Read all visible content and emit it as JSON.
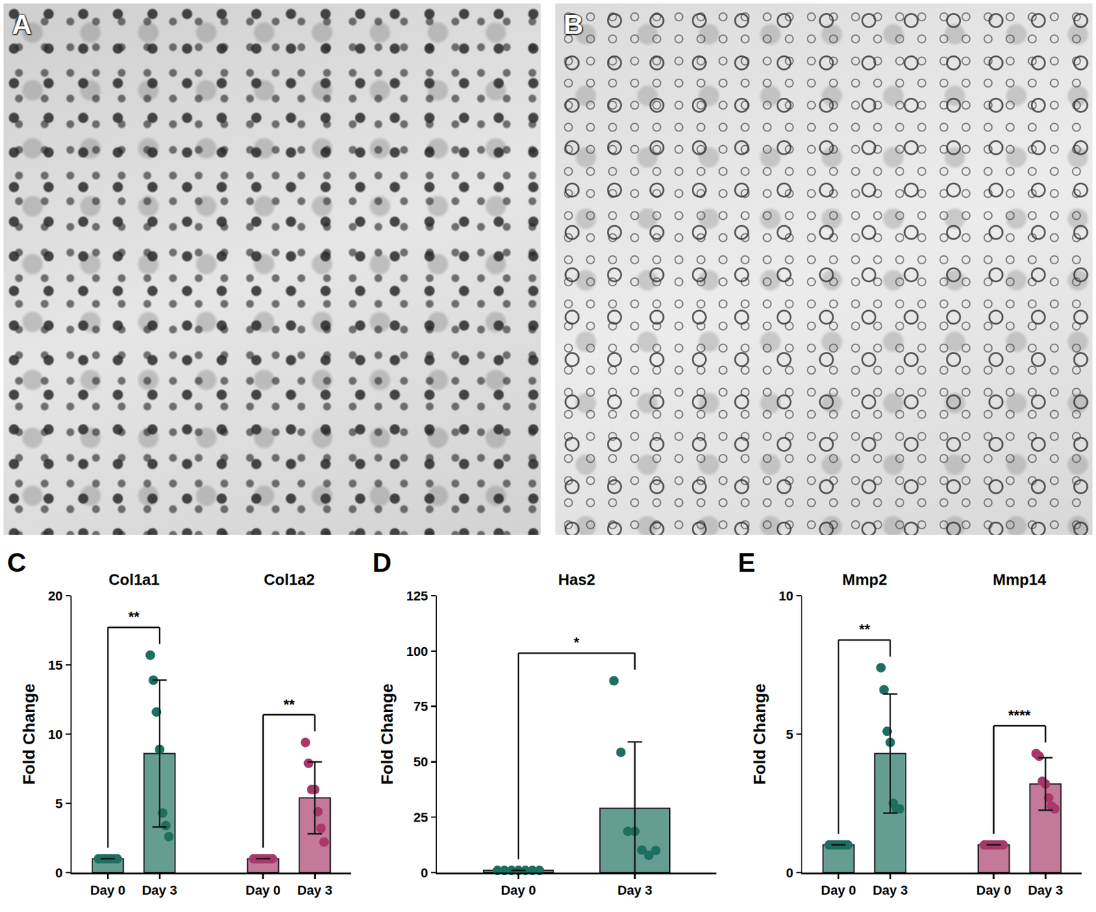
{
  "images": [
    {
      "panel_label": "A"
    },
    {
      "panel_label": "B"
    }
  ],
  "chart_data": [
    {
      "type": "bar",
      "panel_label": "C",
      "ylabel": "Fold Change",
      "categories": [
        "Day 0",
        "Day 3"
      ],
      "ylim": [
        0,
        20
      ],
      "yticks": [
        0,
        5,
        10,
        15,
        20
      ],
      "grid": false,
      "series": [
        {
          "name": "Col1a1",
          "color": "#1d6f5f",
          "values": [
            1,
            8.6
          ],
          "errors": [
            0,
            5.3
          ],
          "points": [
            [
              1,
              1,
              1,
              1,
              1,
              1,
              1
            ],
            [
              15.7,
              13.9,
              11.6,
              8.9,
              4.3,
              3.4,
              2.6
            ]
          ],
          "annotation": "**"
        },
        {
          "name": "Col1a2",
          "color": "#a8386a",
          "values": [
            1,
            5.4
          ],
          "errors": [
            0,
            2.6
          ],
          "points": [
            [
              1,
              1,
              1,
              1,
              1,
              1,
              1
            ],
            [
              9.4,
              7.9,
              6.0,
              6.0,
              4.4,
              3.2,
              2.2
            ]
          ],
          "annotation": "**"
        }
      ]
    },
    {
      "type": "bar",
      "panel_label": "D",
      "ylabel": "Fold Change",
      "categories": [
        "Day 0",
        "Day 3"
      ],
      "ylim": [
        0,
        125
      ],
      "yticks": [
        0,
        25,
        50,
        75,
        100,
        125
      ],
      "grid": false,
      "series": [
        {
          "name": "Has2",
          "color": "#1d6f5f",
          "values": [
            1,
            29
          ],
          "errors": [
            0,
            30
          ],
          "points": [
            [
              1,
              1,
              1,
              1,
              1,
              1,
              1
            ],
            [
              86.6,
              54.3,
              18.6,
              18.6,
              10.2,
              7.8,
              10
            ]
          ],
          "annotation": "*"
        }
      ]
    },
    {
      "type": "bar",
      "panel_label": "E",
      "ylabel": "Fold Change",
      "categories": [
        "Day 0",
        "Day 3"
      ],
      "ylim": [
        0,
        10
      ],
      "yticks": [
        0,
        5,
        10
      ],
      "grid": false,
      "series": [
        {
          "name": "Mmp2",
          "color": "#1d6f5f",
          "values": [
            1,
            4.3
          ],
          "errors": [
            0,
            2.15
          ],
          "points": [
            [
              1,
              1,
              1,
              1,
              1,
              1,
              1
            ],
            [
              7.4,
              6.6,
              5.1,
              4.7,
              2.5,
              2.3,
              2.3
            ]
          ],
          "annotation": "**"
        },
        {
          "name": "Mmp14",
          "color": "#a8386a",
          "values": [
            1,
            3.2
          ],
          "errors": [
            0,
            0.95
          ],
          "points": [
            [
              1,
              1,
              1,
              1,
              1,
              1,
              1
            ],
            [
              4.3,
              4.2,
              3.3,
              3.2,
              2.7,
              2.4,
              2.3
            ]
          ],
          "annotation": "****"
        }
      ]
    }
  ]
}
